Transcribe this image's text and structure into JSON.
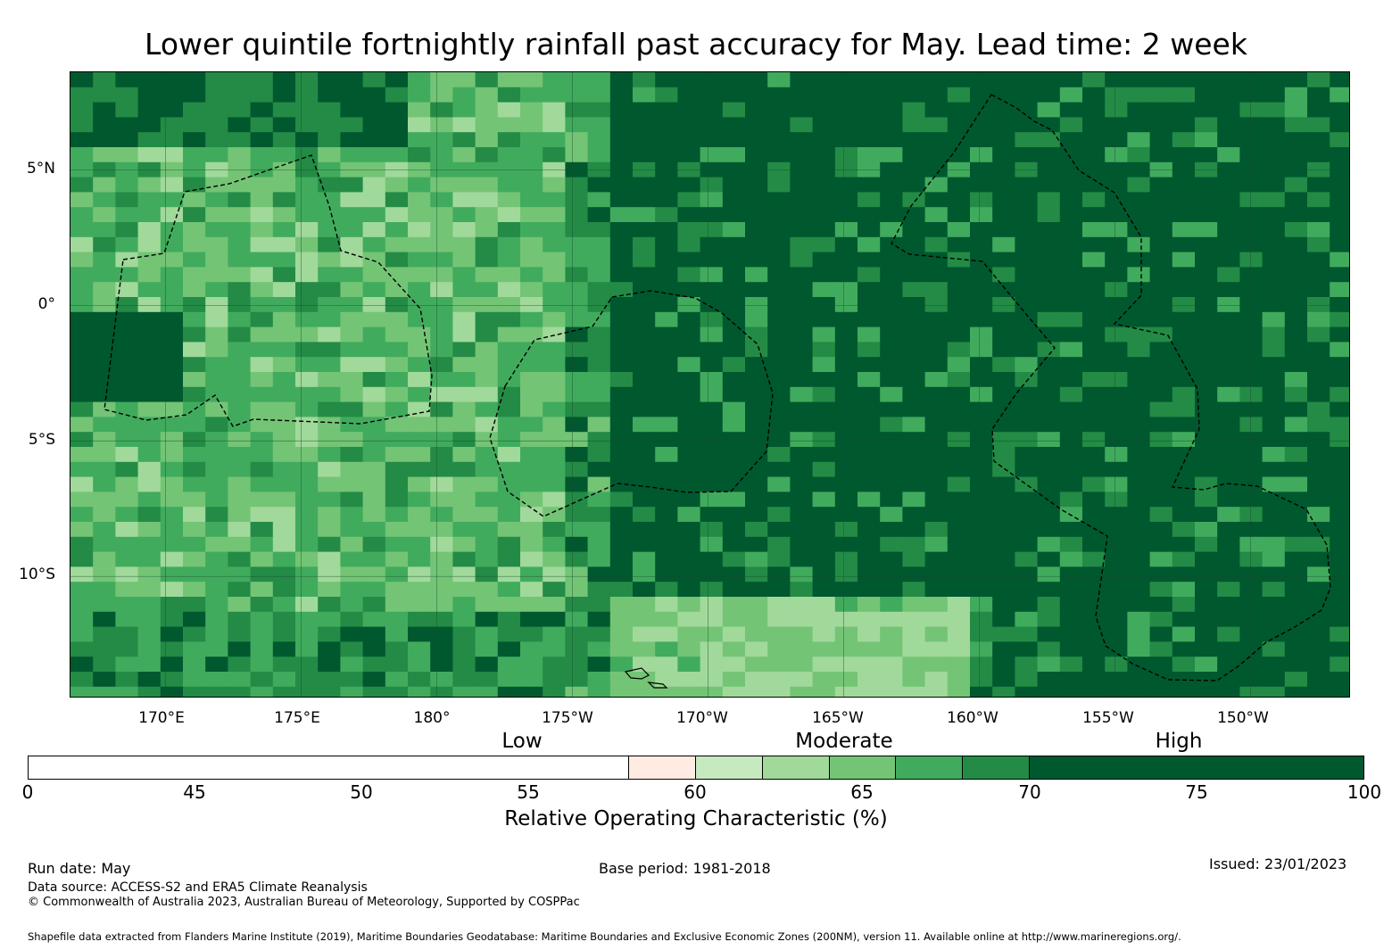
{
  "title": "Lower quintile fortnightly rainfall past accuracy for May. Lead time: 2 week",
  "map": {
    "lon_range": [
      166.5,
      213.7
    ],
    "lat_range": [
      -14.5,
      8.6
    ],
    "lat_ticks": [
      {
        "label": "5°N",
        "value": 5
      },
      {
        "label": "0°",
        "value": 0
      },
      {
        "label": "5°S",
        "value": -5
      },
      {
        "label": "10°S",
        "value": -10
      }
    ],
    "lon_ticks": [
      {
        "label": "170°E",
        "value": 170
      },
      {
        "label": "175°E",
        "value": 175
      },
      {
        "label": "180°",
        "value": 180
      },
      {
        "label": "175°W",
        "value": 185
      },
      {
        "label": "170°W",
        "value": 190
      },
      {
        "label": "165°W",
        "value": 195
      },
      {
        "label": "160°W",
        "value": 200
      },
      {
        "label": "155°W",
        "value": 205
      },
      {
        "label": "150°W",
        "value": 210
      }
    ],
    "grid_lines": true,
    "eez_boundaries": "dashed-black",
    "high_color": "#00582f"
  },
  "legend": {
    "categories": [
      {
        "label": "Low",
        "value": 57.5
      },
      {
        "label": "Moderate",
        "value": 67.5
      },
      {
        "label": "High",
        "value": 77.5
      }
    ],
    "bins": [
      {
        "from": 0,
        "to": 45,
        "color": "#ffffff"
      },
      {
        "from": 45,
        "to": 50,
        "color": "#ffebe2"
      },
      {
        "from": 50,
        "to": 55,
        "color": "#c7e9c0"
      },
      {
        "from": 55,
        "to": 60,
        "color": "#a1d99b"
      },
      {
        "from": 60,
        "to": 65,
        "color": "#74c476"
      },
      {
        "from": 65,
        "to": 70,
        "color": "#41ab5d"
      },
      {
        "from": 70,
        "to": 75,
        "color": "#238b45"
      },
      {
        "from": 75,
        "to": 100,
        "color": "#00582f"
      }
    ],
    "ticks": [
      "0",
      "45",
      "50",
      "55",
      "60",
      "65",
      "70",
      "75",
      "100"
    ],
    "label": "Relative Operating Characteristic (%)"
  },
  "footer": {
    "run_date": "Run date: May",
    "base_period": "Base period: 1981-2018",
    "issued": "Issued: 23/01/2023",
    "data_source": "Data source: ACCESS-S2 and ERA5 Climate Reanalysis",
    "copyright": "© Commonwealth of Australia 2023, Australian Bureau of Meteorology, Supported by COSPPac",
    "shapefile": "Shapefile data extracted from Flanders Marine Institute (2019), Maritime Boundaries Geodatabase: Maritime Boundaries and Exclusive Economic Zones (200NM), version 11. Available online at http://www.marineregions.org/."
  }
}
